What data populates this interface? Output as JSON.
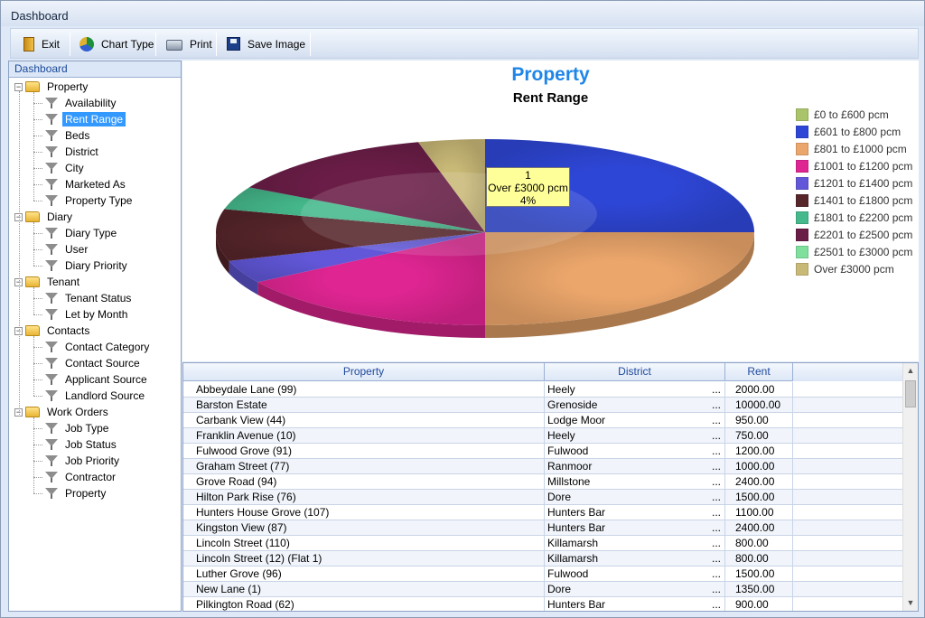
{
  "window": {
    "title": "Dashboard"
  },
  "toolbar": {
    "buttons": [
      {
        "label": "Exit",
        "icon": "exit-icon"
      },
      {
        "label": "Chart Type",
        "icon": "chart-type-icon"
      },
      {
        "label": "Print",
        "icon": "printer-icon"
      },
      {
        "label": "Save Image",
        "icon": "save-icon"
      }
    ]
  },
  "tree": {
    "header": "Dashboard",
    "nodes": [
      {
        "label": "Property",
        "kind": "folder"
      },
      {
        "label": "Availability",
        "kind": "item"
      },
      {
        "label": "Rent Range",
        "kind": "item",
        "selected": true
      },
      {
        "label": "Beds",
        "kind": "item"
      },
      {
        "label": "District",
        "kind": "item"
      },
      {
        "label": "City",
        "kind": "item"
      },
      {
        "label": "Marketed As",
        "kind": "item"
      },
      {
        "label": "Property Type",
        "kind": "item"
      },
      {
        "label": "Diary",
        "kind": "folder"
      },
      {
        "label": "Diary Type",
        "kind": "item"
      },
      {
        "label": "User",
        "kind": "item"
      },
      {
        "label": "Diary Priority",
        "kind": "item"
      },
      {
        "label": "Tenant",
        "kind": "folder"
      },
      {
        "label": "Tenant Status",
        "kind": "item"
      },
      {
        "label": "Let by Month",
        "kind": "item"
      },
      {
        "label": "Contacts",
        "kind": "folder"
      },
      {
        "label": "Contact Category",
        "kind": "item"
      },
      {
        "label": "Contact Source",
        "kind": "item"
      },
      {
        "label": "Applicant Source",
        "kind": "item"
      },
      {
        "label": "Landlord Source",
        "kind": "item"
      },
      {
        "label": "Work Orders",
        "kind": "folder"
      },
      {
        "label": "Job Type",
        "kind": "item"
      },
      {
        "label": "Job Status",
        "kind": "item"
      },
      {
        "label": "Job Priority",
        "kind": "item"
      },
      {
        "label": "Contractor",
        "kind": "item"
      },
      {
        "label": "Property",
        "kind": "item"
      }
    ]
  },
  "chart_data": {
    "type": "pie",
    "title": "Property",
    "subtitle": "Rent Range",
    "legend_position": "right",
    "categories": [
      "£0 to £600 pcm",
      "£601 to £800 pcm",
      "£801 to £1000 pcm",
      "£1001 to £1200 pcm",
      "£1201 to £1400 pcm",
      "£1401 to £1800 pcm",
      "£1801 to £2200 pcm",
      "£2201 to £2500 pcm",
      "£2501 to £3000 pcm",
      "Over £3000 pcm"
    ],
    "values": [
      0,
      25,
      25,
      16,
      4,
      9,
      4,
      13,
      0,
      4
    ],
    "colors": [
      "#a9c46a",
      "#2e46d6",
      "#eba66b",
      "#df2592",
      "#6157d8",
      "#57262b",
      "#45b98c",
      "#6a1d47",
      "#7fdf9c",
      "#c9b977"
    ],
    "tooltip": {
      "count": "1",
      "category": "Over £3000 pcm",
      "percent": "4%"
    }
  },
  "grid": {
    "columns": [
      "Property",
      "District",
      "Rent"
    ],
    "rows": [
      [
        "Abbeydale Lane (99)",
        "Heely",
        "2000.00"
      ],
      [
        "Barston Estate",
        "Grenoside",
        "10000.00"
      ],
      [
        "Carbank View (44)",
        "Lodge Moor",
        "950.00"
      ],
      [
        "Franklin Avenue (10)",
        "Heely",
        "750.00"
      ],
      [
        "Fulwood Grove (91)",
        "Fulwood",
        "1200.00"
      ],
      [
        "Graham Street (77)",
        "Ranmoor",
        "1000.00"
      ],
      [
        "Grove Road (94)",
        "Millstone",
        "2400.00"
      ],
      [
        "Hilton Park Rise (76)",
        "Dore",
        "1500.00"
      ],
      [
        "Hunters House Grove (107)",
        "Hunters Bar",
        "1100.00"
      ],
      [
        "Kingston View (87)",
        "Hunters Bar",
        "2400.00"
      ],
      [
        "Lincoln Street (110)",
        "Killamarsh",
        "800.00"
      ],
      [
        "Lincoln Street (12) (Flat 1)",
        "Killamarsh",
        "800.00"
      ],
      [
        "Luther Grove (96)",
        "Fulwood",
        "1500.00"
      ],
      [
        "New Lane (1)",
        "Dore",
        "1350.00"
      ],
      [
        "Pilkington Road (62)",
        "Hunters Bar",
        "900.00"
      ]
    ],
    "ellipsis": "..."
  }
}
